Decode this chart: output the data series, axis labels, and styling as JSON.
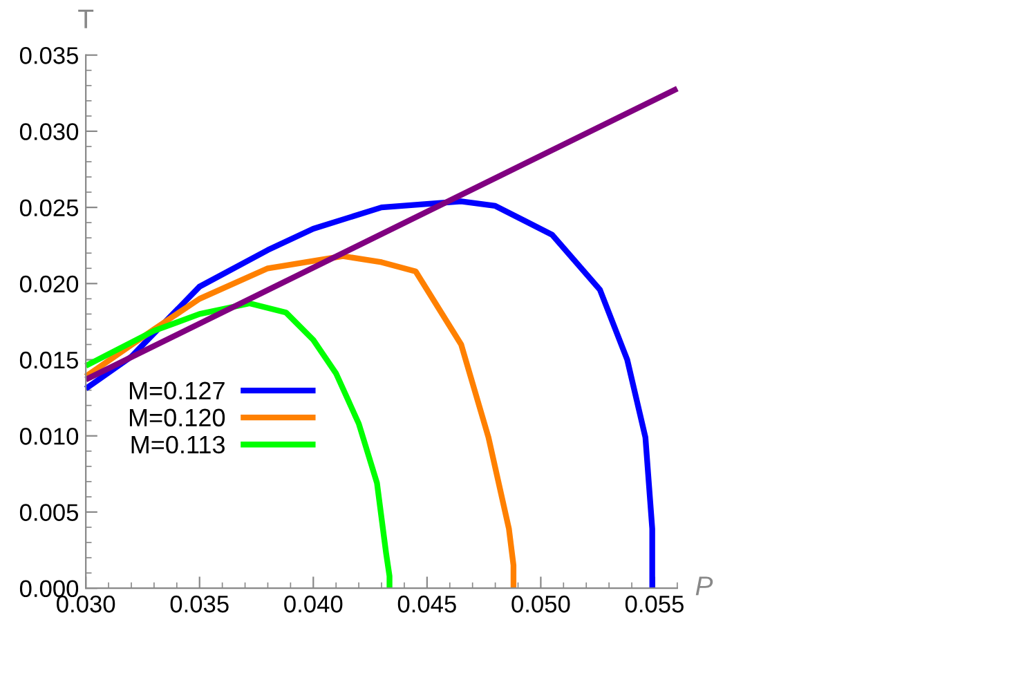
{
  "chart_data": {
    "type": "line",
    "xlabel": "P",
    "ylabel": "T",
    "xlim": [
      0.03,
      0.056
    ],
    "ylim": [
      0,
      0.035
    ],
    "xticks": [
      {
        "value": 0.03,
        "label": "0.030"
      },
      {
        "value": 0.035,
        "label": "0.035"
      },
      {
        "value": 0.04,
        "label": "0.040"
      },
      {
        "value": 0.045,
        "label": "0.045"
      },
      {
        "value": 0.05,
        "label": "0.050"
      },
      {
        "value": 0.055,
        "label": "0.055"
      }
    ],
    "yticks": [
      {
        "value": 0,
        "label": "0.000"
      },
      {
        "value": 0.005,
        "label": "0.005"
      },
      {
        "value": 0.01,
        "label": "0.010"
      },
      {
        "value": 0.015,
        "label": "0.015"
      },
      {
        "value": 0.02,
        "label": "0.020"
      },
      {
        "value": 0.025,
        "label": "0.025"
      },
      {
        "value": 0.03,
        "label": "0.030"
      },
      {
        "value": 0.035,
        "label": "0.035"
      }
    ],
    "grid": false,
    "legend": "lower left",
    "marker": "none",
    "line_style": "solid",
    "series": [
      {
        "name": "M=0.127",
        "color": "#0000ff",
        "x": [
          0.03,
          0.032,
          0.035,
          0.038,
          0.04,
          0.043,
          0.0465,
          0.048,
          0.0505,
          0.0526,
          0.0538,
          0.0546,
          0.0549,
          0.0549
        ],
        "values": [
          0.0131,
          0.0152,
          0.0198,
          0.0222,
          0.0236,
          0.025,
          0.0254,
          0.0251,
          0.0232,
          0.0196,
          0.015,
          0.0099,
          0.0039,
          0.0
        ]
      },
      {
        "name": "M=0.120",
        "color": "#ff8000",
        "x": [
          0.03,
          0.033,
          0.035,
          0.038,
          0.0413,
          0.043,
          0.0445,
          0.0465,
          0.0477,
          0.0486,
          0.0488,
          0.0488
        ],
        "values": [
          0.0139,
          0.017,
          0.019,
          0.021,
          0.0218,
          0.0214,
          0.0208,
          0.016,
          0.0099,
          0.0039,
          0.0015,
          0.0
        ]
      },
      {
        "name": "M=0.113",
        "color": "#00ff00",
        "x": [
          0.03,
          0.033,
          0.035,
          0.0372,
          0.0388,
          0.04,
          0.041,
          0.042,
          0.0428,
          0.0432,
          0.04335,
          0.04335
        ],
        "values": [
          0.0146,
          0.0169,
          0.018,
          0.0187,
          0.0181,
          0.0163,
          0.0141,
          0.0108,
          0.0069,
          0.0023,
          0.0008,
          0.0
        ]
      },
      {
        "color": "#800080",
        "x": [
          0.03,
          0.056
        ],
        "values": [
          0.0137,
          0.0328
        ]
      }
    ]
  }
}
